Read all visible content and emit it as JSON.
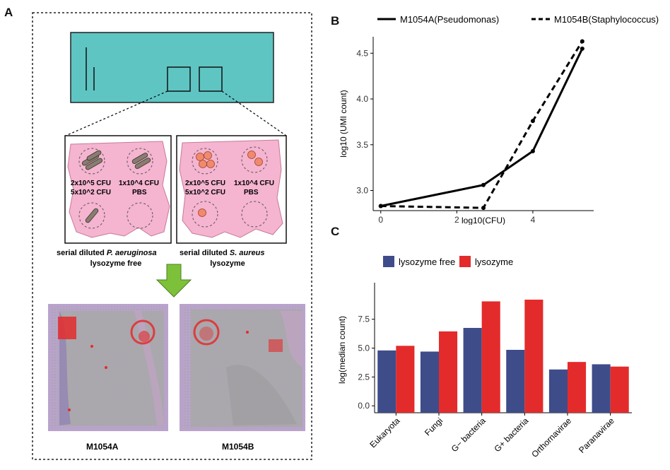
{
  "panels": {
    "a": "A",
    "b": "B",
    "c": "C"
  },
  "panel_a": {
    "well_labels_left": {
      "top_left": "2x10^5 CFU",
      "top_right": "1x10^4 CFU",
      "bottom_left": "5x10^2 CFU",
      "bottom_right": "PBS"
    },
    "well_labels_right": {
      "top_left": "2x10^5 CFU",
      "top_right": "1x10^4 CFU",
      "bottom_left": "5x10^2 CFU",
      "bottom_right": "PBS"
    },
    "caption_left": {
      "prefix": "serial diluted",
      "species": "P. aeruginosa",
      "line2": "lysozyme free"
    },
    "caption_right": {
      "prefix": "serial diluted",
      "species": "S. aureus",
      "line2": "lysozyme"
    },
    "sample_left": "M1054A",
    "sample_right": "M1054B",
    "colors": {
      "slide": "#5ec5c3",
      "tissue": "#f5b4cf",
      "rod": "#8a7d6e",
      "coccus": "#f08a6e",
      "arrow": "#7dc13a",
      "spots": "#e02a2a"
    }
  },
  "chart_data": [
    {
      "type": "line",
      "legend_position": "top",
      "xlabel": "log10(CFU)",
      "ylabel": "log10 (UMI count)",
      "xlim": [
        -0.2,
        5.6
      ],
      "ylim": [
        2.78,
        4.68
      ],
      "x_ticks": [
        0,
        2,
        4
      ],
      "y_ticks": [
        3.0,
        3.5,
        4.0,
        4.5
      ],
      "series": [
        {
          "name": "M1054A(Pseudomonas)",
          "dash": "solid",
          "x": [
            0,
            2.7,
            4.0,
            5.3
          ],
          "y": [
            2.83,
            3.06,
            3.43,
            4.55
          ]
        },
        {
          "name": "M1054B(Staphylococcus)",
          "dash": "dashed",
          "x": [
            0,
            2.7,
            4.0,
            5.3
          ],
          "y": [
            2.83,
            2.81,
            3.76,
            4.63
          ]
        }
      ]
    },
    {
      "type": "bar",
      "legend_position": "top",
      "ylabel": "log(median count)",
      "xlabel": "",
      "ylim": [
        -0.6,
        10.3
      ],
      "y_ticks": [
        0.0,
        2.5,
        5.0,
        7.5
      ],
      "categories": [
        "Eukaryota",
        "Fungi",
        "G− bacteria",
        "G+ bacteria",
        "Orthornavirae",
        "Paranavirae"
      ],
      "series": [
        {
          "name": "lysozyme free",
          "color": "#3f4c8a",
          "values": [
            4.8,
            4.7,
            6.75,
            4.85,
            3.15,
            3.6
          ]
        },
        {
          "name": "lysozyme",
          "color": "#e32b2b",
          "values": [
            5.2,
            6.45,
            9.05,
            9.2,
            3.8,
            3.4
          ]
        }
      ]
    }
  ]
}
